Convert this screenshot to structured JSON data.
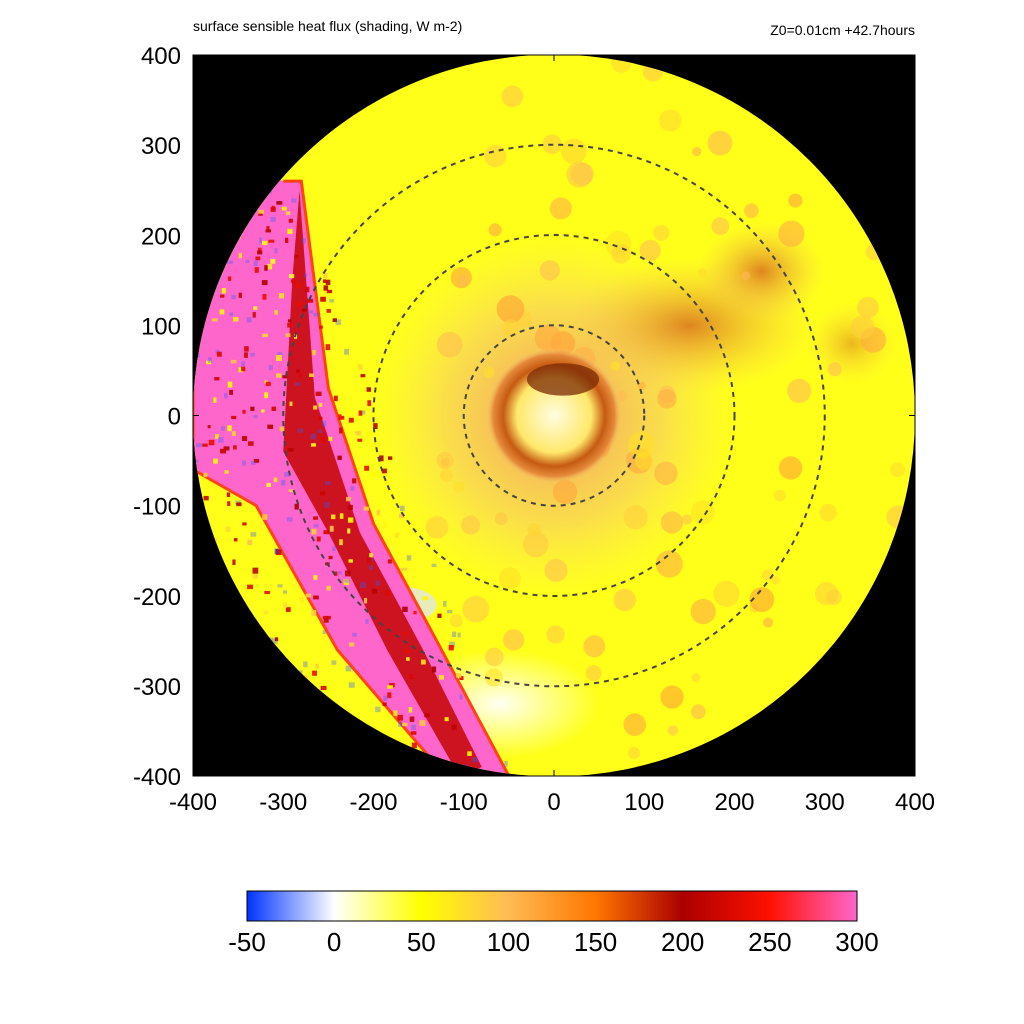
{
  "header": {
    "title": "surface sensible heat flux (shading, W m-2)",
    "run_info": "Z0=0.01cm  +42.7hours"
  },
  "chart_data": {
    "type": "heatmap",
    "title": "surface sensible heat flux (shading, W m-2)",
    "subtitle": "Z0=0.01cm  +42.7hours",
    "xlim": [
      -400,
      400
    ],
    "ylim": [
      -400,
      400
    ],
    "x_ticks": [
      -400,
      -300,
      -200,
      -100,
      0,
      100,
      200,
      300,
      400
    ],
    "y_ticks": [
      -400,
      -300,
      -200,
      -100,
      0,
      100,
      200,
      300,
      400
    ],
    "domain_radius": 400,
    "outside_domain_color": "#000000",
    "range_rings": [
      100,
      200,
      300
    ],
    "colorbar": {
      "ticks": [
        -50,
        0,
        50,
        100,
        150,
        200,
        250,
        300
      ],
      "min": -50,
      "max": 300,
      "stops": [
        {
          "value": -50,
          "color": "#0033ff"
        },
        {
          "value": 0,
          "color": "#ffffff"
        },
        {
          "value": 50,
          "color": "#ffff00"
        },
        {
          "value": 100,
          "color": "#ffbb55"
        },
        {
          "value": 150,
          "color": "#ff7700"
        },
        {
          "value": 200,
          "color": "#aa0000"
        },
        {
          "value": 250,
          "color": "#ff1100"
        },
        {
          "value": 300,
          "color": "#ff66cc"
        }
      ]
    },
    "features": [
      {
        "name": "eye",
        "center": [
          0,
          0
        ],
        "radius": 30,
        "value": 40
      },
      {
        "name": "eyewall",
        "center": [
          0,
          0
        ],
        "radius": 50,
        "value": 190
      },
      {
        "name": "inner rainband",
        "center": [
          0,
          0
        ],
        "radius": 130,
        "value": 110
      },
      {
        "name": "northeast band",
        "center": [
          150,
          100
        ],
        "radius": 60,
        "value": 140
      },
      {
        "name": "cold-wake region (west)",
        "x_range": [
          -400,
          -60
        ],
        "value": 260
      },
      {
        "name": "weak flux region (south-west)",
        "center": [
          -80,
          -300
        ],
        "radius": 80,
        "value": 5
      }
    ]
  }
}
